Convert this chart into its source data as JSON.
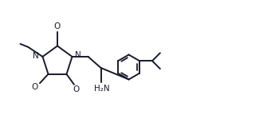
{
  "bg_color": "#ffffff",
  "line_color": "#1a1a2e",
  "line_width": 1.4,
  "font_size": 7.5,
  "figsize": [
    3.45,
    1.59
  ],
  "dpi": 100,
  "xlim": [
    0.0,
    3.45
  ],
  "ylim": [
    0.0,
    1.59
  ]
}
